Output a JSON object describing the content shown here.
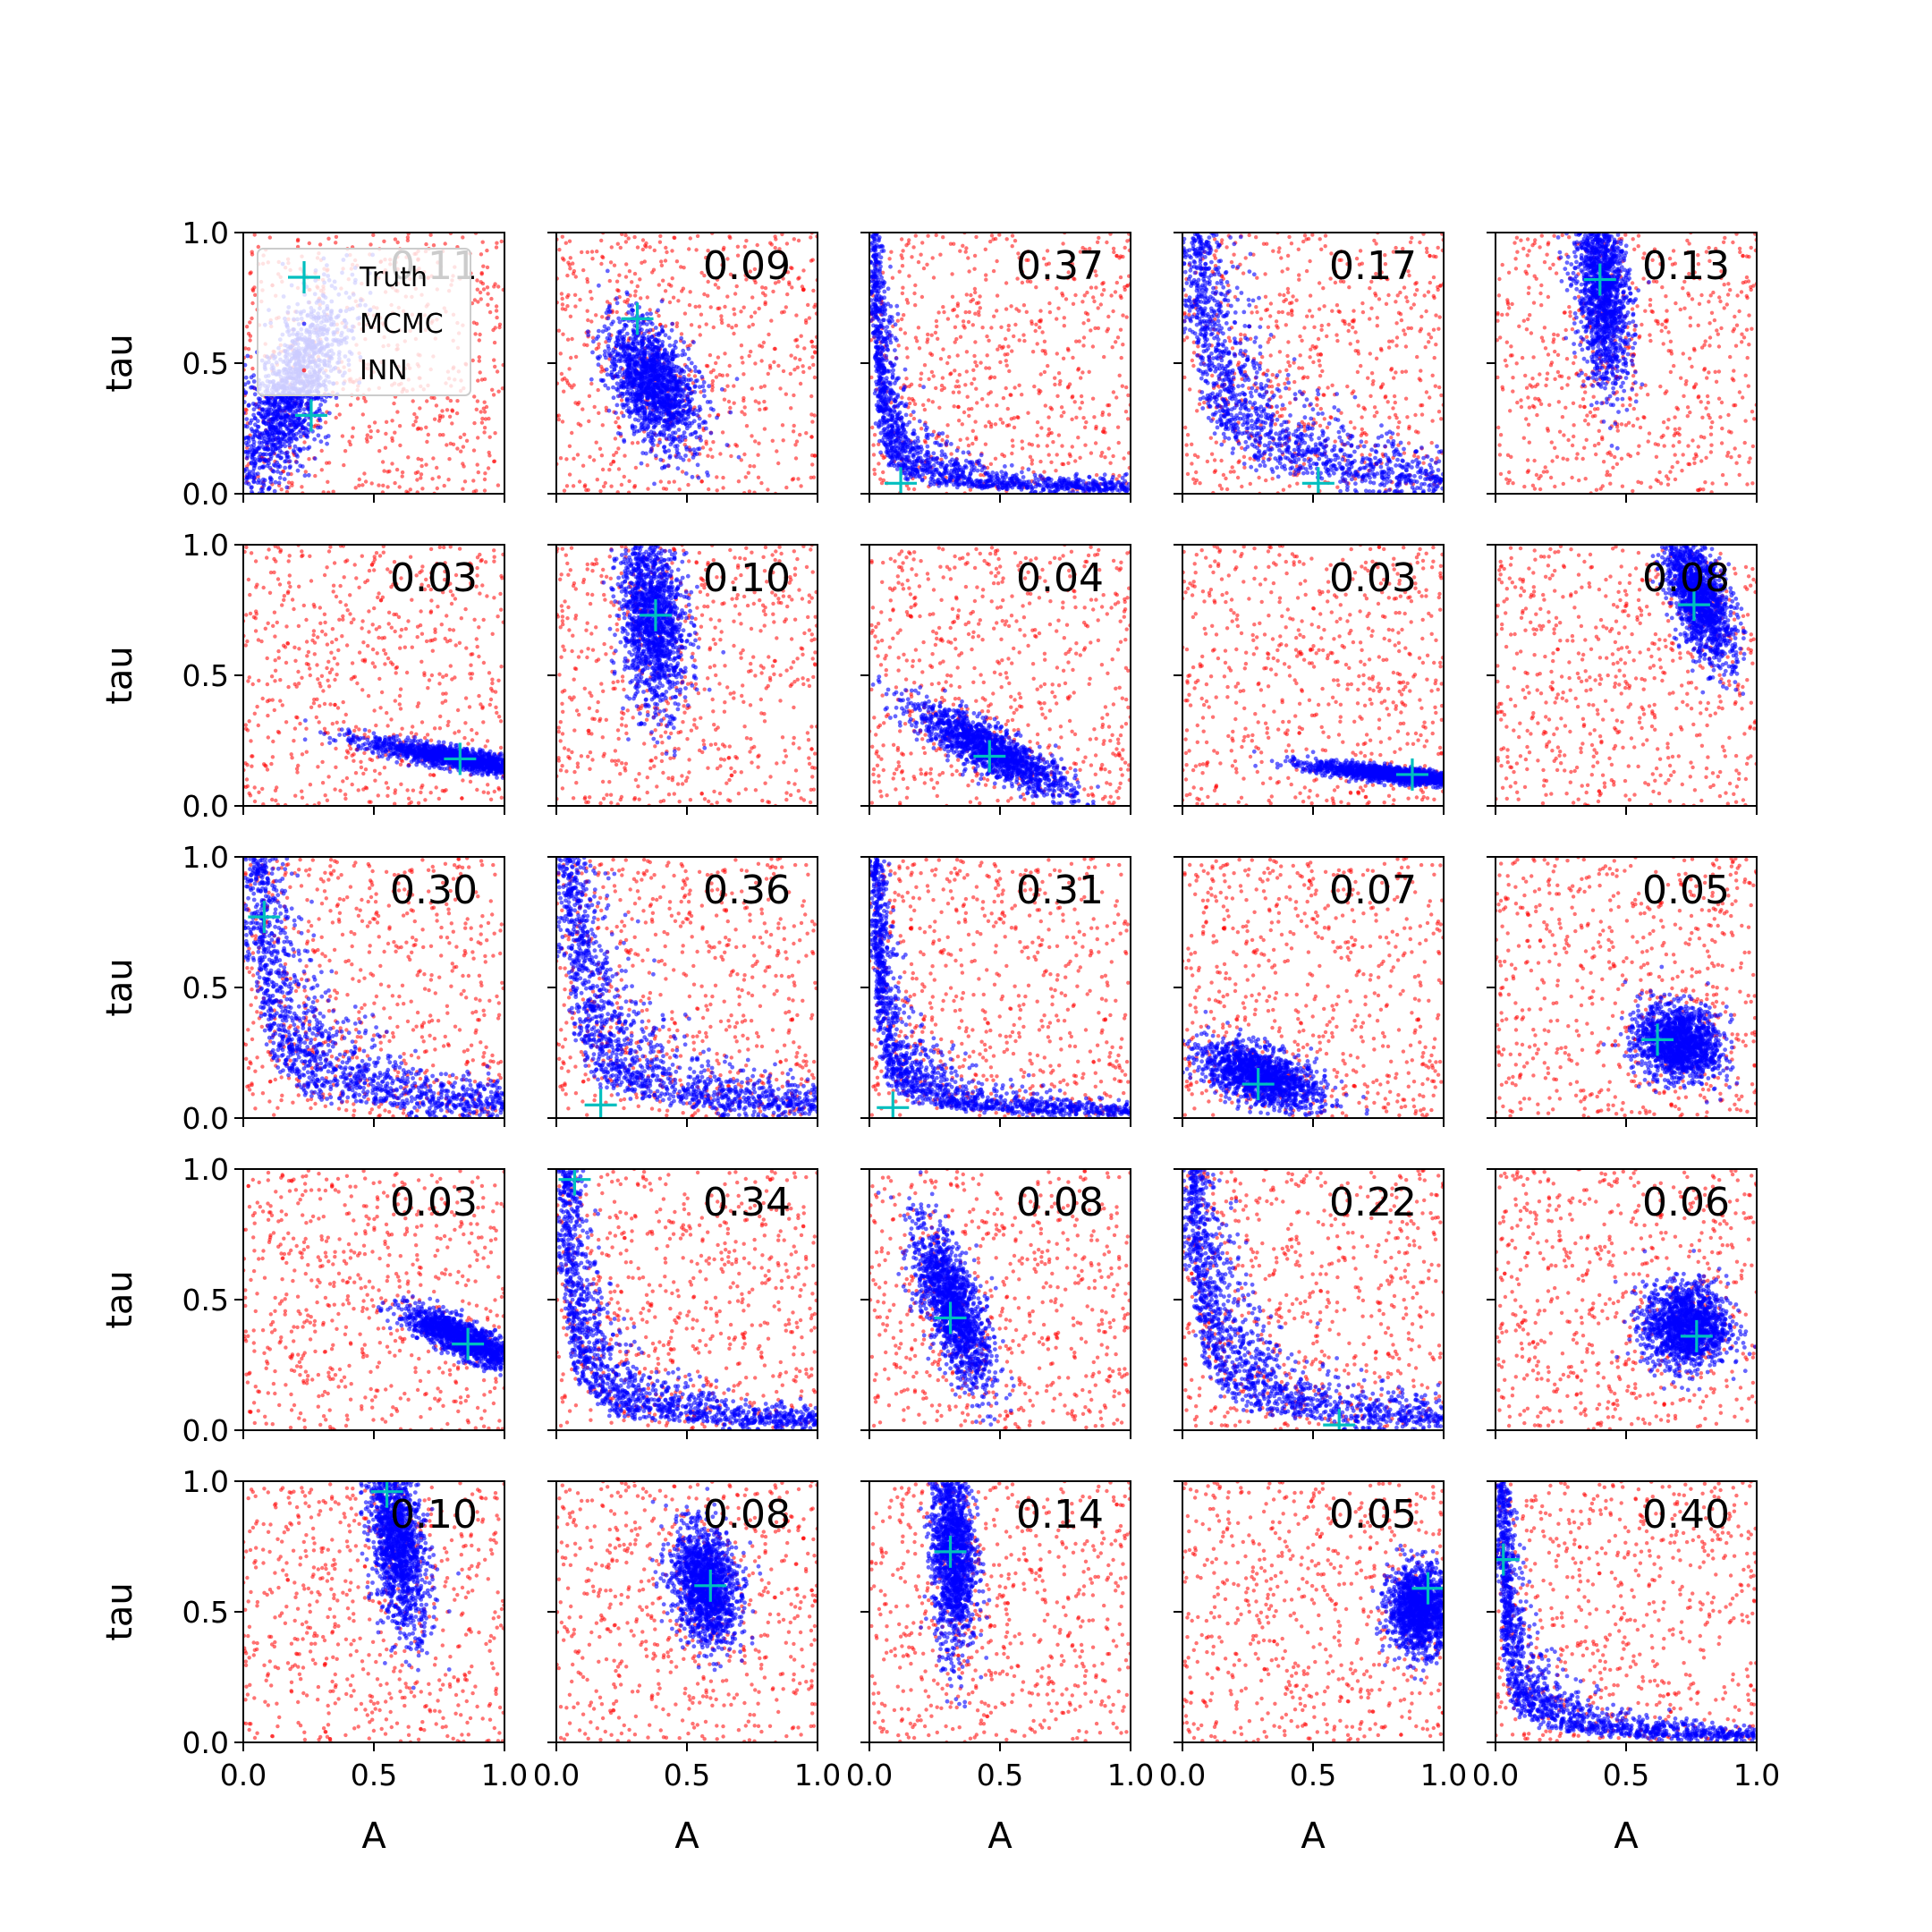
{
  "chart_data": {
    "type": "scatter",
    "layout": {
      "rows": 5,
      "cols": 5
    },
    "xlabel": "A",
    "ylabel": "tau",
    "xlim": [
      0.0,
      1.0
    ],
    "ylim": [
      0.0,
      1.0
    ],
    "xticks": [
      "0.0",
      "0.5",
      "1.0"
    ],
    "yticks": [
      "0.0",
      "0.5",
      "1.0"
    ],
    "legend": {
      "position": "upper-left (first panel)",
      "entries": [
        {
          "label": "Truth",
          "marker": "plus",
          "color": "#00bfbf"
        },
        {
          "label": "MCMC",
          "marker": "dot",
          "color": "#0000ff"
        },
        {
          "label": "INN",
          "marker": "dot",
          "color": "#ff0000"
        }
      ]
    },
    "colors": {
      "truth": "#00bfbf",
      "mcmc": "#0000ff",
      "inn": "#ff0000"
    },
    "panels": [
      {
        "value": "0.11",
        "truth": [
          0.26,
          0.3
        ],
        "mcmc_shape": "blob",
        "mcmc": {
          "cx": 0.17,
          "cy": 0.36,
          "sx": 0.07,
          "sy": 0.22,
          "angle": -25
        }
      },
      {
        "value": "0.09",
        "truth": [
          0.31,
          0.67
        ],
        "mcmc_shape": "blob",
        "mcmc": {
          "cx": 0.37,
          "cy": 0.42,
          "sx": 0.07,
          "sy": 0.13,
          "angle": 25
        }
      },
      {
        "value": "0.37",
        "truth": [
          0.12,
          0.04
        ],
        "mcmc_shape": "hyperbola",
        "mcmc": {
          "k": 0.01
        }
      },
      {
        "value": "0.17",
        "truth": [
          0.52,
          0.04
        ],
        "mcmc_shape": "hyperbola",
        "mcmc": {
          "k": 0.035
        }
      },
      {
        "value": "0.13",
        "truth": [
          0.4,
          0.82
        ],
        "mcmc_shape": "blob",
        "mcmc": {
          "cx": 0.41,
          "cy": 0.78,
          "sx": 0.05,
          "sy": 0.18,
          "angle": 5
        }
      },
      {
        "value": "0.03",
        "truth": [
          0.83,
          0.18
        ],
        "mcmc_shape": "blob",
        "mcmc": {
          "cx": 0.83,
          "cy": 0.18,
          "sx": 0.18,
          "sy": 0.02,
          "angle": -10
        }
      },
      {
        "value": "0.10",
        "truth": [
          0.38,
          0.73
        ],
        "mcmc_shape": "blob",
        "mcmc": {
          "cx": 0.37,
          "cy": 0.72,
          "sx": 0.06,
          "sy": 0.17,
          "angle": 5
        }
      },
      {
        "value": "0.04",
        "truth": [
          0.46,
          0.19
        ],
        "mcmc_shape": "blob",
        "mcmc": {
          "cx": 0.47,
          "cy": 0.21,
          "sx": 0.17,
          "sy": 0.04,
          "angle": -28
        }
      },
      {
        "value": "0.03",
        "truth": [
          0.88,
          0.12
        ],
        "mcmc_shape": "blob",
        "mcmc": {
          "cx": 0.81,
          "cy": 0.12,
          "sx": 0.16,
          "sy": 0.015,
          "angle": -6
        }
      },
      {
        "value": "0.08",
        "truth": [
          0.76,
          0.77
        ],
        "mcmc_shape": "blob",
        "mcmc": {
          "cx": 0.78,
          "cy": 0.8,
          "sx": 0.05,
          "sy": 0.13,
          "angle": 20
        }
      },
      {
        "value": "0.30",
        "truth": [
          0.08,
          0.77
        ],
        "mcmc_shape": "hyperbola",
        "mcmc": {
          "k": 0.03
        }
      },
      {
        "value": "0.36",
        "truth": [
          0.17,
          0.05
        ],
        "mcmc_shape": "hyperbola",
        "mcmc": {
          "k": 0.028
        }
      },
      {
        "value": "0.31",
        "truth": [
          0.09,
          0.04
        ],
        "mcmc_shape": "hyperbola",
        "mcmc": {
          "k": 0.012
        }
      },
      {
        "value": "0.07",
        "truth": [
          0.29,
          0.13
        ],
        "mcmc_shape": "blob",
        "mcmc": {
          "cx": 0.3,
          "cy": 0.16,
          "sx": 0.12,
          "sy": 0.05,
          "angle": -20
        }
      },
      {
        "value": "0.05",
        "truth": [
          0.62,
          0.3
        ],
        "mcmc_shape": "blob",
        "mcmc": {
          "cx": 0.7,
          "cy": 0.29,
          "sx": 0.08,
          "sy": 0.07,
          "angle": -20
        }
      },
      {
        "value": "0.03",
        "truth": [
          0.86,
          0.33
        ],
        "mcmc_shape": "blob",
        "mcmc": {
          "cx": 0.84,
          "cy": 0.35,
          "sx": 0.12,
          "sy": 0.03,
          "angle": -25
        }
      },
      {
        "value": "0.34",
        "truth": [
          0.07,
          0.96
        ],
        "mcmc_shape": "hyperbola",
        "mcmc": {
          "k": 0.018
        }
      },
      {
        "value": "0.08",
        "truth": [
          0.31,
          0.43
        ],
        "mcmc_shape": "blob",
        "mcmc": {
          "cx": 0.32,
          "cy": 0.47,
          "sx": 0.05,
          "sy": 0.16,
          "angle": 20
        }
      },
      {
        "value": "0.22",
        "truth": [
          0.6,
          0.02
        ],
        "mcmc_shape": "hyperbola",
        "mcmc": {
          "k": 0.025
        }
      },
      {
        "value": "0.06",
        "truth": [
          0.77,
          0.36
        ],
        "mcmc_shape": "blob",
        "mcmc": {
          "cx": 0.73,
          "cy": 0.4,
          "sx": 0.08,
          "sy": 0.08,
          "angle": 0
        }
      },
      {
        "value": "0.10",
        "truth": [
          0.55,
          0.96
        ],
        "mcmc_shape": "blob",
        "mcmc": {
          "cx": 0.59,
          "cy": 0.77,
          "sx": 0.05,
          "sy": 0.17,
          "angle": 8
        }
      },
      {
        "value": "0.08",
        "truth": [
          0.59,
          0.6
        ],
        "mcmc_shape": "blob",
        "mcmc": {
          "cx": 0.57,
          "cy": 0.6,
          "sx": 0.06,
          "sy": 0.11,
          "angle": 10
        }
      },
      {
        "value": "0.14",
        "truth": [
          0.31,
          0.73
        ],
        "mcmc_shape": "blob",
        "mcmc": {
          "cx": 0.32,
          "cy": 0.73,
          "sx": 0.04,
          "sy": 0.19,
          "angle": 2
        }
      },
      {
        "value": "0.05",
        "truth": [
          0.94,
          0.59
        ],
        "mcmc_shape": "blob",
        "mcmc": {
          "cx": 0.91,
          "cy": 0.51,
          "sx": 0.06,
          "sy": 0.08,
          "angle": 0
        }
      },
      {
        "value": "0.40",
        "truth": [
          0.03,
          0.7
        ],
        "mcmc_shape": "hyperbola",
        "mcmc": {
          "k": 0.012
        }
      }
    ]
  }
}
